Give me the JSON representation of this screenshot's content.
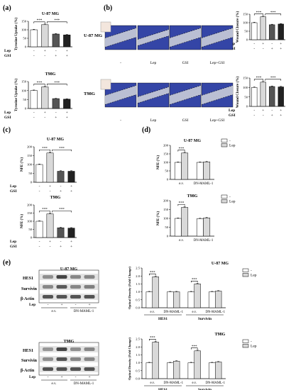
{
  "panel_labels": {
    "a": "(a)",
    "b": "(b)",
    "c": "(c)",
    "d": "(d)",
    "e": "(e)"
  },
  "colors": {
    "white": "#ffffff",
    "light_gray": "#d9d9d9",
    "mid_gray": "#999999",
    "dark_gray": "#555555",
    "black": "#222222",
    "cell_blue": "#3445a6",
    "gap": "#c9ccd8"
  },
  "conditions": [
    "-",
    "Lep",
    "GSI",
    "Lep+GSI"
  ],
  "treat_rows": {
    "lep_label": "Lep",
    "gsi_label": "GSI",
    "lep": [
      "-",
      "+",
      "-",
      "+"
    ],
    "gsi": [
      "-",
      "-",
      "+",
      "+"
    ]
  },
  "western_rows": {
    "lep_label": "Lep",
    "lep": [
      "-",
      "+",
      "-",
      "+"
    ],
    "groups": [
      "e.v.",
      "DN-MAML-1"
    ],
    "bands": [
      "HES1",
      "Survivin",
      "β-Actin"
    ]
  },
  "sig_mark": "***",
  "cell_titles": {
    "u87": "U-87 MG",
    "t98": "T98G"
  },
  "chart_data": [
    {
      "id": "a1",
      "type": "bar",
      "title": "U-87 MG",
      "ylabel": "Tyrosine Uptake (%)",
      "ylim": [
        0,
        150
      ],
      "yticks": [
        0,
        50,
        100,
        150
      ],
      "categories": [
        "-/-",
        "+/-",
        "-/+",
        "+/+"
      ],
      "values": [
        100,
        130,
        75,
        70
      ],
      "errors": [
        3,
        4,
        3,
        3
      ]
    },
    {
      "id": "a2",
      "type": "bar",
      "title": "T98G",
      "ylabel": "Tyrosine Uptake (%)",
      "ylim": [
        0,
        150
      ],
      "yticks": [
        0,
        50,
        100,
        150
      ],
      "categories": [
        "-/-",
        "+/-",
        "-/+",
        "+/+"
      ],
      "values": [
        100,
        120,
        55,
        52
      ],
      "errors": [
        3,
        4,
        2,
        2
      ]
    },
    {
      "id": "b1",
      "type": "bar",
      "title": "",
      "ylabel": "Wound Closure (%)",
      "ylim": [
        0,
        150
      ],
      "yticks": [
        0,
        50,
        100,
        150
      ],
      "categories": [
        "-/-",
        "+/-",
        "-/+",
        "+/+"
      ],
      "values": [
        100,
        135,
        88,
        92
      ],
      "errors": [
        3,
        4,
        3,
        3
      ]
    },
    {
      "id": "b2",
      "type": "bar",
      "title": "",
      "ylabel": "Wound Closure (%)",
      "ylim": [
        0,
        150
      ],
      "yticks": [
        0,
        50,
        100,
        150
      ],
      "categories": [
        "-/-",
        "+/-",
        "-/+",
        "+/+"
      ],
      "values": [
        100,
        128,
        105,
        103
      ],
      "errors": [
        3,
        4,
        3,
        3
      ]
    },
    {
      "id": "c1",
      "type": "bar",
      "title": "U-87 MG",
      "ylabel": "NFE (%)",
      "ylim": [
        0,
        200
      ],
      "yticks": [
        0,
        50,
        100,
        150,
        200
      ],
      "categories": [
        "-/-",
        "+/-",
        "-/+",
        "+/+"
      ],
      "values": [
        100,
        165,
        62,
        62
      ],
      "errors": [
        3,
        6,
        3,
        3
      ]
    },
    {
      "id": "c2",
      "type": "bar",
      "title": "T98G",
      "ylabel": "NFE (%)",
      "ylim": [
        0,
        200
      ],
      "yticks": [
        0,
        50,
        100,
        150,
        200
      ],
      "categories": [
        "-/-",
        "+/-",
        "-/+",
        "+/+"
      ],
      "values": [
        100,
        145,
        60,
        58
      ],
      "errors": [
        3,
        5,
        3,
        3
      ]
    },
    {
      "id": "d1",
      "type": "bar",
      "title": "U-87 MG",
      "ylabel": "NFE (%)",
      "ylim": [
        0,
        200
      ],
      "yticks": [
        0,
        50,
        100,
        150,
        200
      ],
      "groups": [
        "e.v.",
        "DN-MAML-1"
      ],
      "legend": [
        "-",
        "Lep"
      ],
      "values": [
        [
          100,
          155
        ],
        [
          100,
          103
        ]
      ],
      "errors": [
        [
          3,
          5
        ],
        [
          3,
          3
        ]
      ]
    },
    {
      "id": "d2",
      "type": "bar",
      "title": "T98G",
      "ylabel": "NFE (%)",
      "ylim": [
        0,
        200
      ],
      "yticks": [
        0,
        50,
        100,
        150,
        200
      ],
      "groups": [
        "e.v.",
        "DN-MAML-1"
      ],
      "legend": [
        "-",
        "Lep"
      ],
      "values": [
        [
          100,
          162
        ],
        [
          98,
          103
        ]
      ],
      "errors": [
        [
          3,
          5
        ],
        [
          3,
          3
        ]
      ]
    },
    {
      "id": "e1",
      "type": "bar",
      "title": "U-87 MG",
      "ylabel": "Optical Density (Fold Change)",
      "ylim": [
        0,
        2.5
      ],
      "yticks": [
        0,
        0.5,
        1.0,
        1.5,
        2.0,
        2.5
      ],
      "groups": [
        "e.v.",
        "DN-MAML-1",
        "e.v.",
        "DN-MAML-1"
      ],
      "proteins": [
        "HES1",
        "Survivin"
      ],
      "legend": [
        "-",
        "Lep"
      ],
      "values": [
        [
          1.0,
          1.95
        ],
        [
          1.0,
          1.0
        ],
        [
          1.0,
          1.5
        ],
        [
          1.0,
          1.05
        ]
      ],
      "errors": [
        [
          0.03,
          0.05
        ],
        [
          0.03,
          0.03
        ],
        [
          0.03,
          0.05
        ],
        [
          0.03,
          0.03
        ]
      ]
    },
    {
      "id": "e2",
      "type": "bar",
      "title": "T98G",
      "ylabel": "Optical Density (Fold Change)",
      "ylim": [
        0,
        2.5
      ],
      "yticks": [
        0,
        0.5,
        1.0,
        1.5,
        2.0,
        2.5
      ],
      "groups": [
        "e.v.",
        "DN-MAML-1",
        "e.v.",
        "DN-MAML-1"
      ],
      "proteins": [
        "HES1",
        "Survivin"
      ],
      "legend": [
        "-",
        "Lep"
      ],
      "values": [
        [
          1.0,
          2.3
        ],
        [
          1.0,
          1.1
        ],
        [
          1.0,
          1.75
        ],
        [
          1.0,
          1.05
        ]
      ],
      "errors": [
        [
          0.03,
          0.05
        ],
        [
          0.03,
          0.03
        ],
        [
          0.03,
          0.05
        ],
        [
          0.03,
          0.03
        ]
      ]
    }
  ]
}
